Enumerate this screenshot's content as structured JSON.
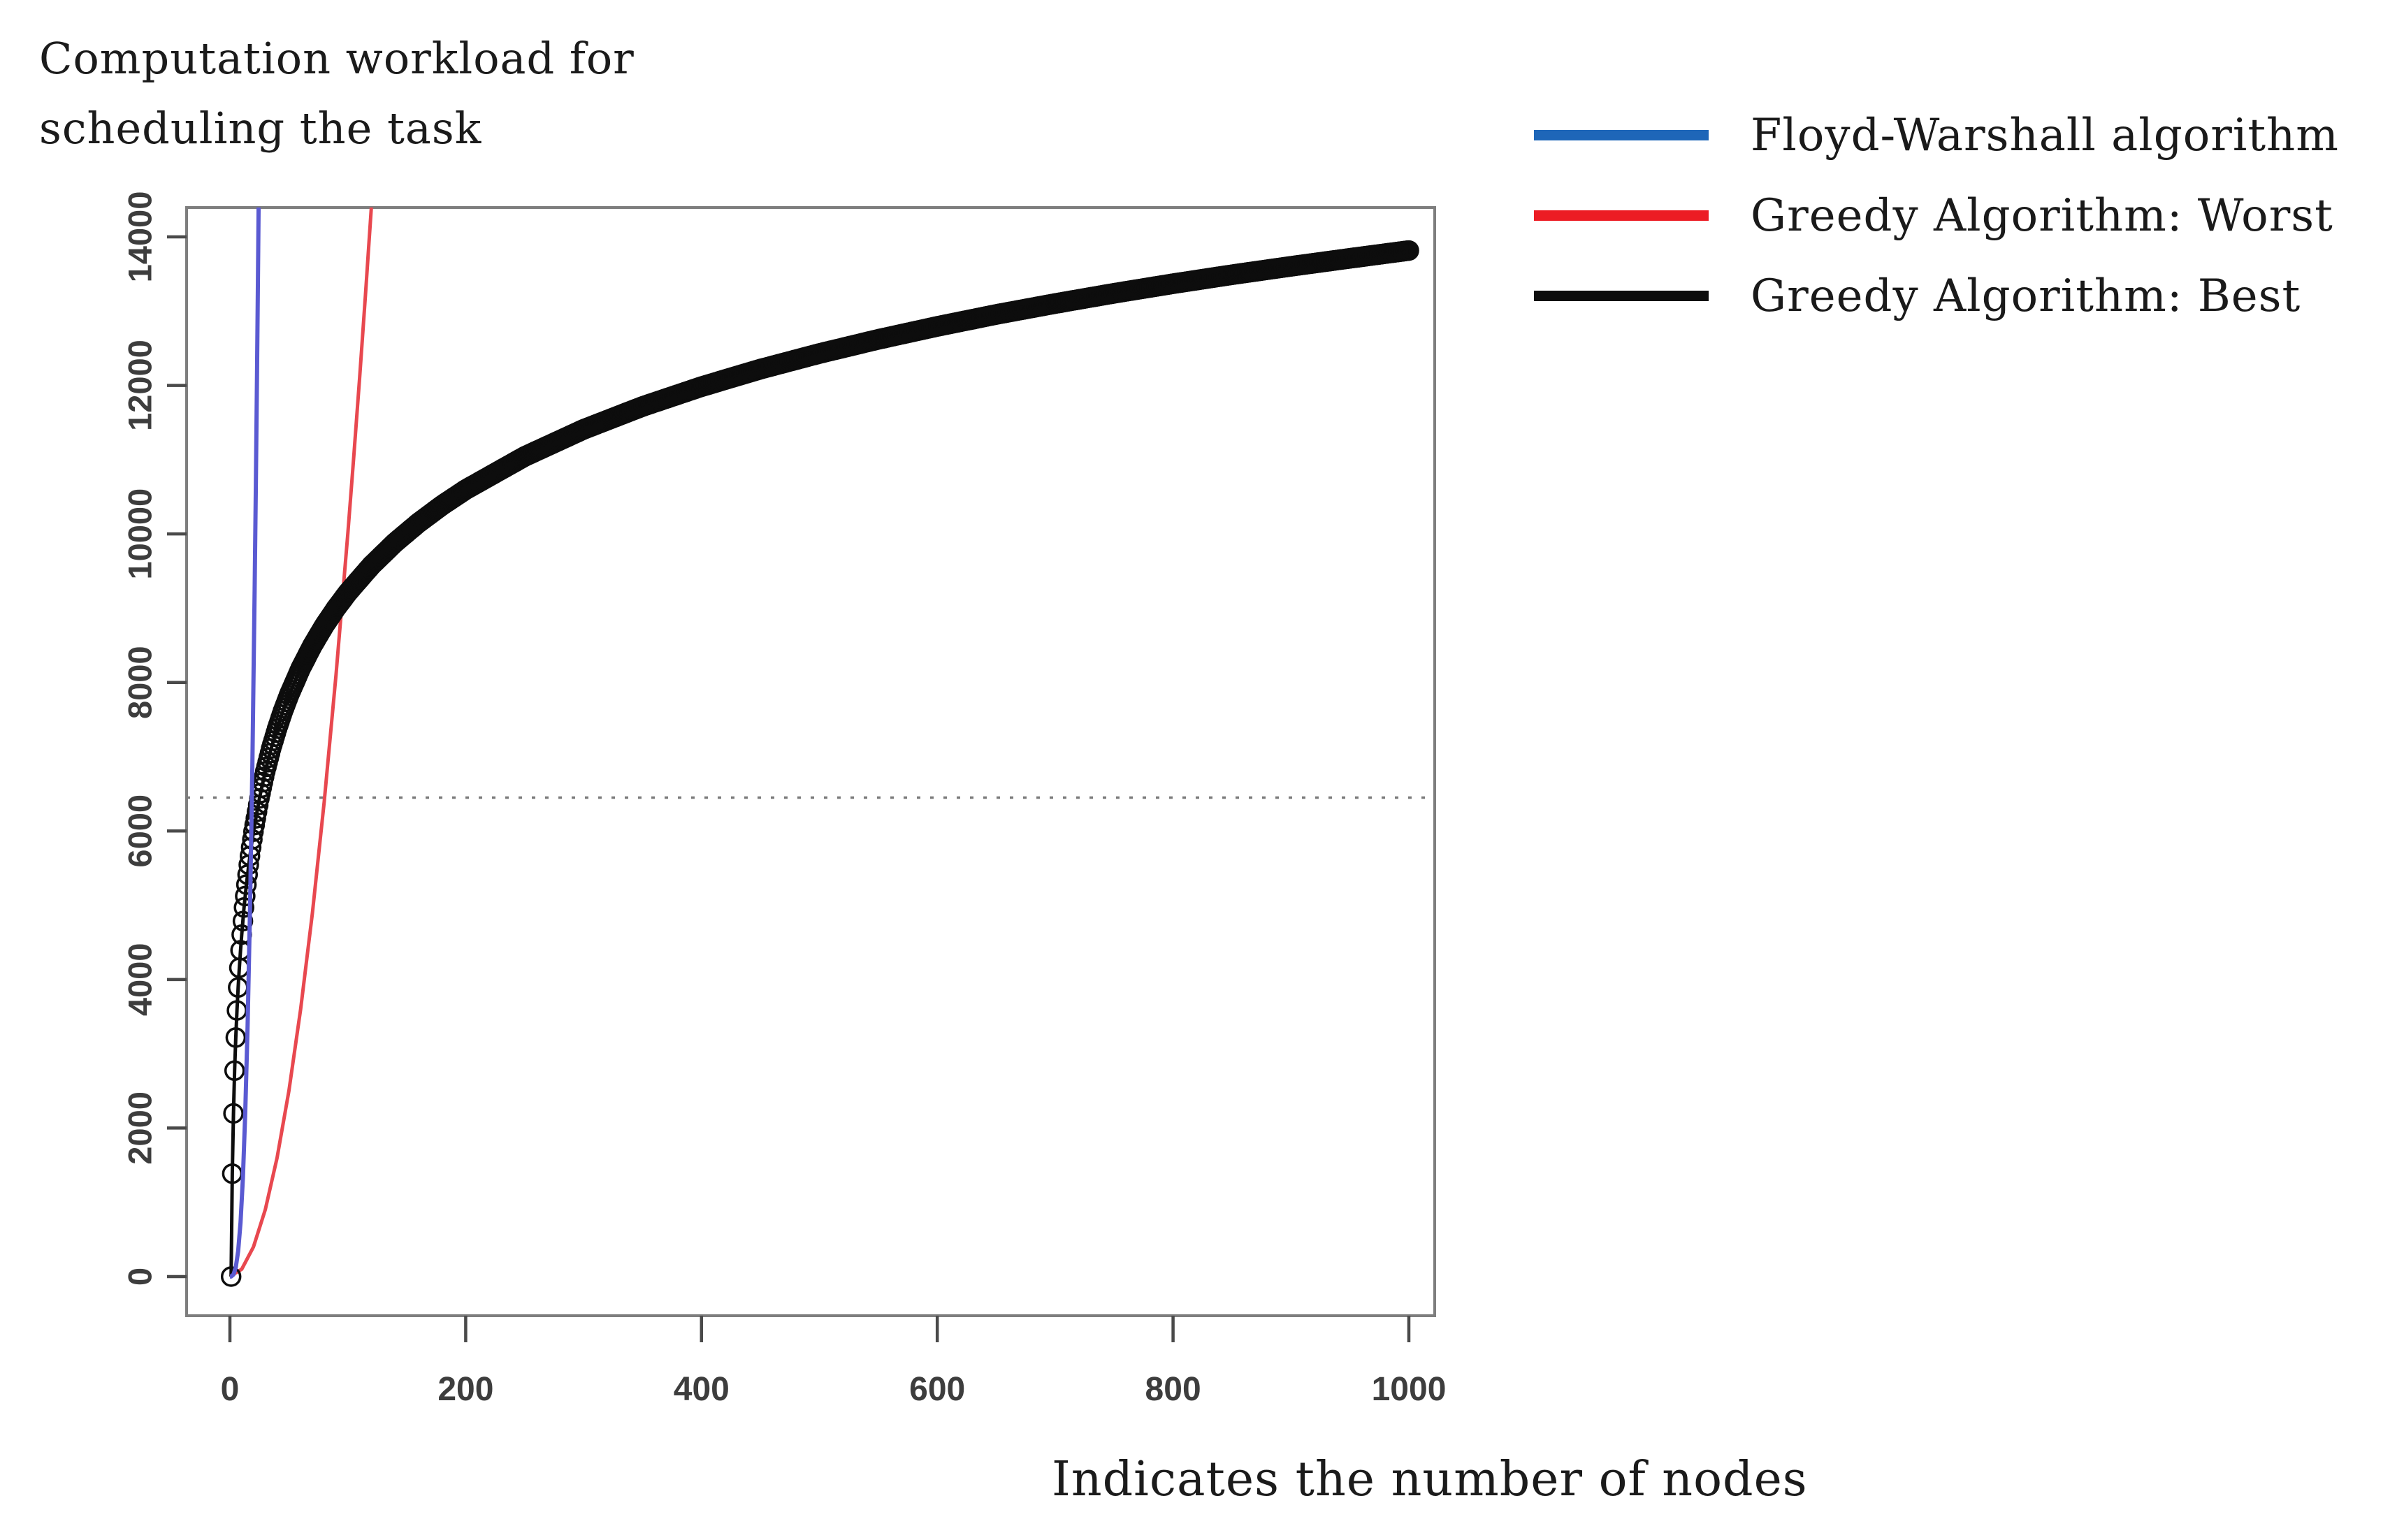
{
  "title": {
    "line1": "Computation workload for",
    "line2": "scheduling the task"
  },
  "x_axis_caption": "Indicates the number of nodes",
  "legend": [
    {
      "label": "Floyd-Warshall algorithm",
      "swatch_color": "#1e66b8"
    },
    {
      "label": "Greedy Algorithm: Worst",
      "swatch_color": "#ec1c24"
    },
    {
      "label": "Greedy Algorithm: Best",
      "swatch_color": "#0d0d0d"
    }
  ],
  "chart_data": {
    "type": "line",
    "title": "Computation workload for scheduling the task",
    "xlabel": "Indicates the number of nodes",
    "ylabel": "Computation workload for scheduling the task",
    "xlim": [
      0,
      1000
    ],
    "ylim": [
      0,
      14000
    ],
    "x_ticks": [
      0,
      200,
      400,
      600,
      800,
      1000
    ],
    "y_ticks": [
      0,
      2000,
      4000,
      6000,
      8000,
      10000,
      12000,
      14000
    ],
    "grid": false,
    "legend_position": "outside-top-right",
    "reference_line": {
      "y": 6450,
      "style": "dotted",
      "color": "#7b7b7b"
    },
    "series": [
      {
        "name": "Floyd-Warshall algorithm",
        "color": "#5a5ad2",
        "marker": "none",
        "description": "cubic growth n^3, near-vertical line",
        "points": [
          [
            0,
            0
          ],
          [
            1,
            1
          ],
          [
            3,
            27
          ],
          [
            5,
            125
          ],
          [
            7,
            343
          ],
          [
            9,
            729
          ],
          [
            11,
            1331
          ],
          [
            13,
            2197
          ],
          [
            15,
            3375
          ],
          [
            17,
            4913
          ],
          [
            19,
            6859
          ],
          [
            21,
            9261
          ],
          [
            22,
            10648
          ],
          [
            23,
            12167
          ],
          [
            24,
            13824
          ],
          [
            25,
            15625
          ]
        ]
      },
      {
        "name": "Greedy Algorithm: Worst",
        "color": "#e8484f",
        "marker": "none",
        "description": "quadratic growth n^2",
        "points": [
          [
            0,
            0
          ],
          [
            10,
            100
          ],
          [
            20,
            400
          ],
          [
            30,
            900
          ],
          [
            40,
            1600
          ],
          [
            50,
            2500
          ],
          [
            60,
            3600
          ],
          [
            70,
            4900
          ],
          [
            80,
            6400
          ],
          [
            90,
            8100
          ],
          [
            100,
            10000
          ],
          [
            105,
            11025
          ],
          [
            110,
            12100
          ],
          [
            115,
            13225
          ],
          [
            120,
            14400
          ],
          [
            125,
            15625
          ]
        ]
      },
      {
        "name": "Greedy Algorithm: Best",
        "color": "#0d0d0d",
        "marker": "circle",
        "marker_step": 1,
        "description": "logarithmic growth ~2000*ln(n), open circle at every node count",
        "points": [
          [
            1,
            0
          ],
          [
            2,
            1386
          ],
          [
            3,
            2197
          ],
          [
            4,
            2773
          ],
          [
            5,
            3219
          ],
          [
            6,
            3584
          ],
          [
            7,
            3892
          ],
          [
            8,
            4159
          ],
          [
            9,
            4394
          ],
          [
            10,
            4605
          ],
          [
            12,
            4970
          ],
          [
            14,
            5278
          ],
          [
            16,
            5545
          ],
          [
            18,
            5781
          ],
          [
            20,
            5991
          ],
          [
            25,
            6438
          ],
          [
            30,
            6802
          ],
          [
            35,
            7110
          ],
          [
            40,
            7377
          ],
          [
            45,
            7613
          ],
          [
            50,
            7824
          ],
          [
            60,
            8188
          ],
          [
            70,
            8497
          ],
          [
            80,
            8764
          ],
          [
            90,
            8999
          ],
          [
            100,
            9210
          ],
          [
            120,
            9575
          ],
          [
            140,
            9883
          ],
          [
            160,
            10150
          ],
          [
            180,
            10386
          ],
          [
            200,
            10597
          ],
          [
            250,
            11043
          ],
          [
            300,
            11408
          ],
          [
            350,
            11716
          ],
          [
            400,
            11983
          ],
          [
            450,
            12219
          ],
          [
            500,
            12429
          ],
          [
            550,
            12620
          ],
          [
            600,
            12794
          ],
          [
            650,
            12955
          ],
          [
            700,
            13102
          ],
          [
            750,
            13240
          ],
          [
            800,
            13369
          ],
          [
            850,
            13490
          ],
          [
            900,
            13603
          ],
          [
            950,
            13711
          ],
          [
            1000,
            13816
          ]
        ]
      }
    ]
  }
}
